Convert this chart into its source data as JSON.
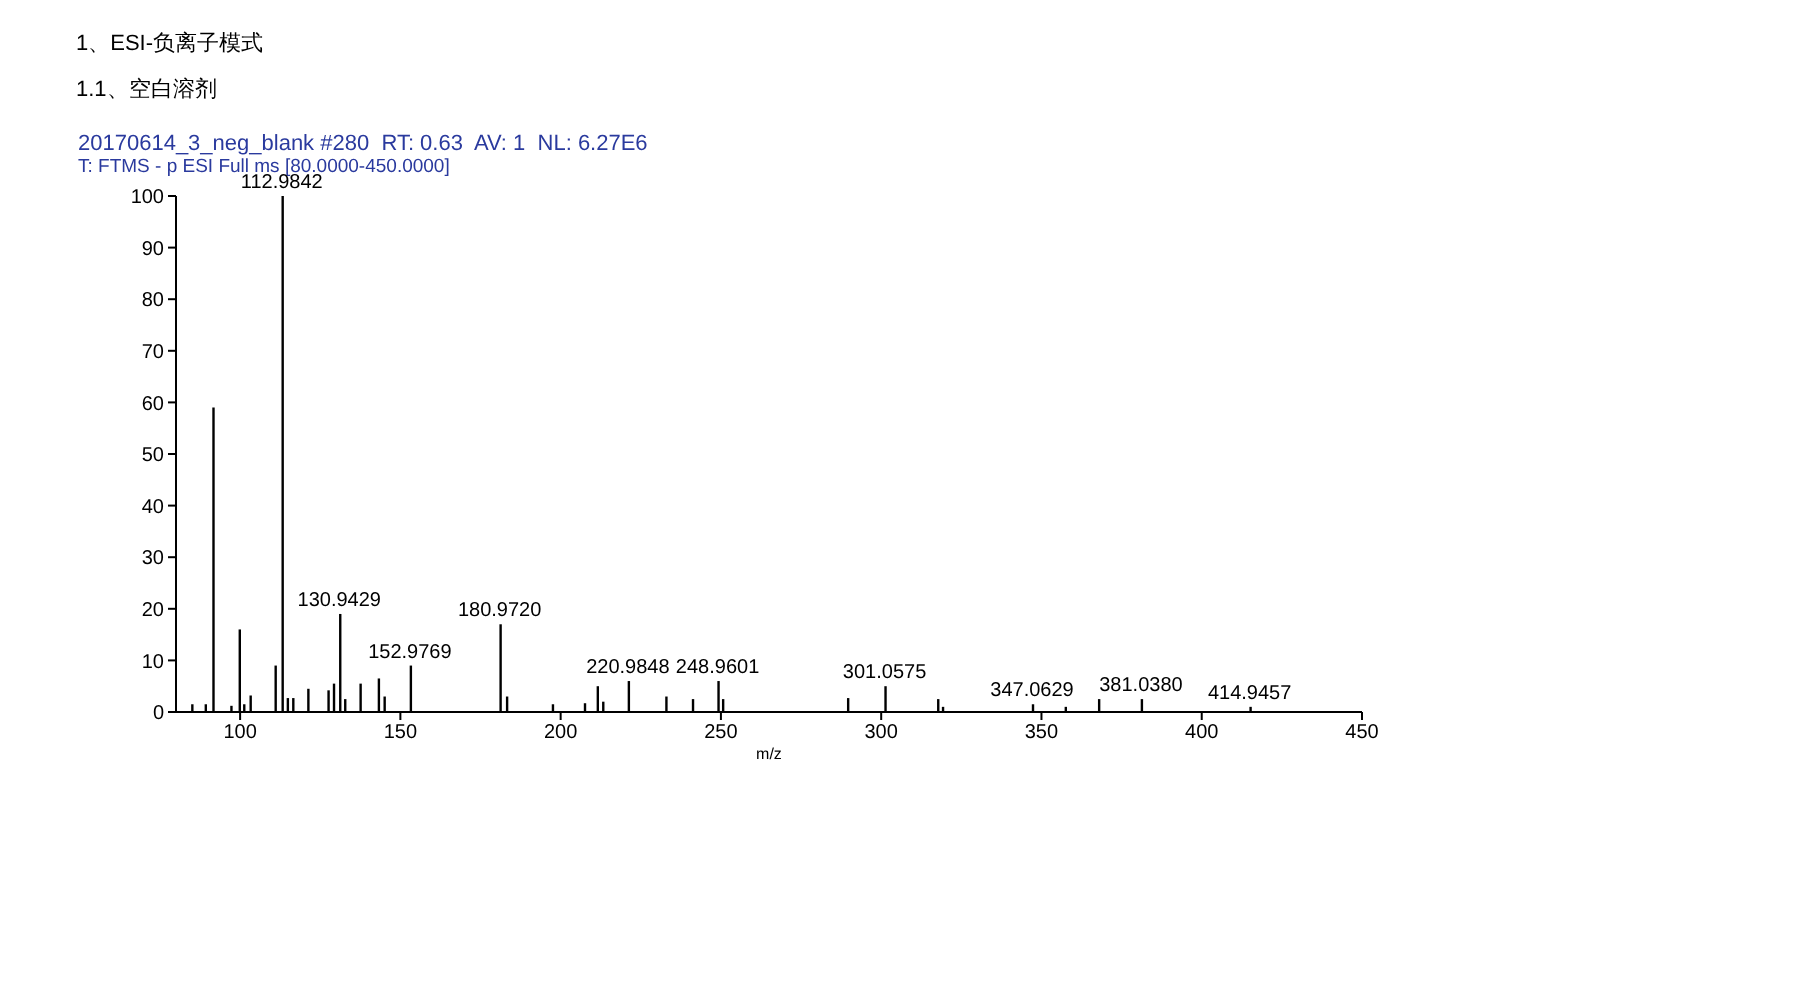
{
  "chart_data": {
    "type": "bar",
    "title": "20170614_3_neg_blank #280  RT: 0.63  AV: 1  NL: 6.27E6",
    "subtitle": "T: FTMS - p ESI Full ms [80.0000-450.0000]",
    "xlabel": "m/z",
    "color": "#000000",
    "x": [
      84.8,
      89,
      91.4,
      97,
      99.6,
      101,
      103,
      110.8,
      112.9842,
      114.6,
      116.3,
      121,
      127.3,
      129,
      130.9429,
      132.5,
      137.3,
      143,
      144.8,
      152.9769,
      180.972,
      183,
      197.3,
      207.3,
      211.3,
      213,
      220.9848,
      232.7,
      241,
      248.9601,
      250.4,
      289.4,
      301.0575,
      317.5,
      319,
      347.0629,
      357.3,
      367.7,
      381.038,
      414.9457
    ],
    "values": [
      1.5,
      1.5,
      59,
      1.2,
      16,
      1.5,
      3.2,
      9,
      100,
      2.7,
      2.7,
      4.5,
      4.2,
      5.5,
      19,
      2.5,
      5.5,
      6.5,
      3,
      9,
      17,
      3,
      1.5,
      1.7,
      5,
      2,
      6,
      3,
      2.5,
      6,
      2.5,
      2.7,
      5,
      2.5,
      1,
      1.5,
      1,
      2.5,
      2.5,
      1
    ],
    "xlim": [
      80,
      450
    ],
    "xticks": [
      100,
      150,
      200,
      250,
      300,
      350,
      400,
      450
    ],
    "ylim": [
      0,
      100
    ],
    "yticks": [
      0,
      10,
      20,
      30,
      40,
      50,
      60,
      70,
      80,
      90,
      100
    ],
    "grid": false,
    "legend": false,
    "annotations": [
      "1、ESI-负离子模式",
      "1.1、空白溶剂",
      {
        "text": "112.9842",
        "x": 112.9842,
        "y": 100
      },
      {
        "text": "130.9429",
        "x": 130.9429,
        "y": 19
      },
      {
        "text": "152.9769",
        "x": 152.9769,
        "y": 9
      },
      {
        "text": "180.9720",
        "x": 180.972,
        "y": 17
      },
      {
        "text": "220.9848",
        "x": 220.9848,
        "y": 6
      },
      {
        "text": "248.9601",
        "x": 248.9601,
        "y": 6
      },
      {
        "text": "301.0575",
        "x": 301.0575,
        "y": 5
      },
      {
        "text": "347.0629",
        "x": 347.0629,
        "y": 1.5
      },
      {
        "text": "381.0380",
        "x": 381.038,
        "y": 2.5
      },
      {
        "text": "414.9457",
        "x": 414.9457,
        "y": 1
      }
    ]
  }
}
